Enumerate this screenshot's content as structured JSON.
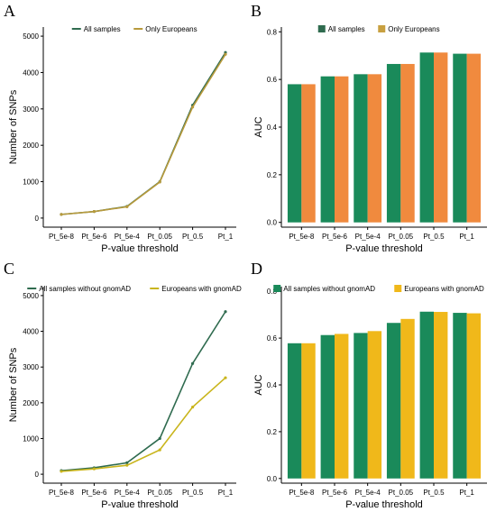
{
  "chart_data": [
    {
      "panel": "A",
      "type": "line",
      "categories": [
        "Pt_5e-8",
        "Pt_5e-6",
        "Pt_5e-4",
        "Pt_0.05",
        "Pt_0.5",
        "Pt_1"
      ],
      "series": [
        {
          "name": "All samples",
          "color": "#2f6b4f",
          "values": [
            100,
            180,
            320,
            1000,
            3100,
            4550
          ]
        },
        {
          "name": "Only Europeans",
          "color": "#b89a3c",
          "values": [
            100,
            180,
            310,
            990,
            3050,
            4500
          ]
        }
      ],
      "xlabel": "P-value threshold",
      "ylabel": "Number of SNPs",
      "ylim": [
        -250,
        5250
      ],
      "yticks": [
        0,
        1000,
        2000,
        3000,
        4000,
        5000
      ],
      "legend": "top"
    },
    {
      "panel": "B",
      "type": "bar",
      "categories": [
        "Pt_5e-8",
        "Pt_5e-6",
        "Pt_5e-4",
        "Pt_0.05",
        "Pt_0.5",
        "Pt_1"
      ],
      "series": [
        {
          "name": "All samples",
          "color": "#1a8a5a",
          "values": [
            0.58,
            0.613,
            0.622,
            0.665,
            0.713,
            0.708
          ]
        },
        {
          "name": "Only Europeans",
          "color": "#f08a3e",
          "values": [
            0.58,
            0.613,
            0.622,
            0.665,
            0.713,
            0.708
          ]
        }
      ],
      "legend_colors": [
        "#2f6b4f",
        "#c8a040"
      ],
      "xlabel": "P-value threshold",
      "ylabel": "AUC",
      "ylim": [
        -0.02,
        0.82
      ],
      "yticks": [
        "0.0",
        "0.2",
        "0.4",
        "0.6",
        "0.8"
      ],
      "legend": "top"
    },
    {
      "panel": "C",
      "type": "line",
      "categories": [
        "Pt_5e-8",
        "Pt_5e-6",
        "Pt_5e-4",
        "Pt_0.05",
        "Pt_0.5",
        "Pt_1"
      ],
      "series": [
        {
          "name": "All samples without gnomAD",
          "color": "#2f6b4f",
          "values": [
            100,
            180,
            320,
            1000,
            3100,
            4550
          ]
        },
        {
          "name": "Europeans with gnomAD",
          "color": "#c9b51c",
          "values": [
            80,
            150,
            250,
            680,
            1880,
            2700
          ]
        }
      ],
      "xlabel": "P-value threshold",
      "ylabel": "Number of SNPs",
      "ylim": [
        -250,
        5250
      ],
      "yticks": [
        0,
        1000,
        2000,
        3000,
        4000,
        5000
      ],
      "legend": "top"
    },
    {
      "panel": "D",
      "type": "bar",
      "categories": [
        "Pt_5e-8",
        "Pt_5e-6",
        "Pt_5e-4",
        "Pt_0.05",
        "Pt_0.5",
        "Pt_1"
      ],
      "series": [
        {
          "name": "All samples without gnomAD",
          "color": "#1a8a5a",
          "values": [
            0.578,
            0.613,
            0.622,
            0.665,
            0.713,
            0.708
          ]
        },
        {
          "name": "Europeans with gnomAD",
          "color": "#f0b81a",
          "values": [
            0.578,
            0.618,
            0.63,
            0.682,
            0.712,
            0.706
          ]
        }
      ],
      "xlabel": "P-value threshold",
      "ylabel": "AUC",
      "ylim": [
        -0.02,
        0.82
      ],
      "yticks": [
        "0.0",
        "0.2",
        "0.4",
        "0.6",
        "0.8"
      ],
      "legend": "top"
    }
  ]
}
